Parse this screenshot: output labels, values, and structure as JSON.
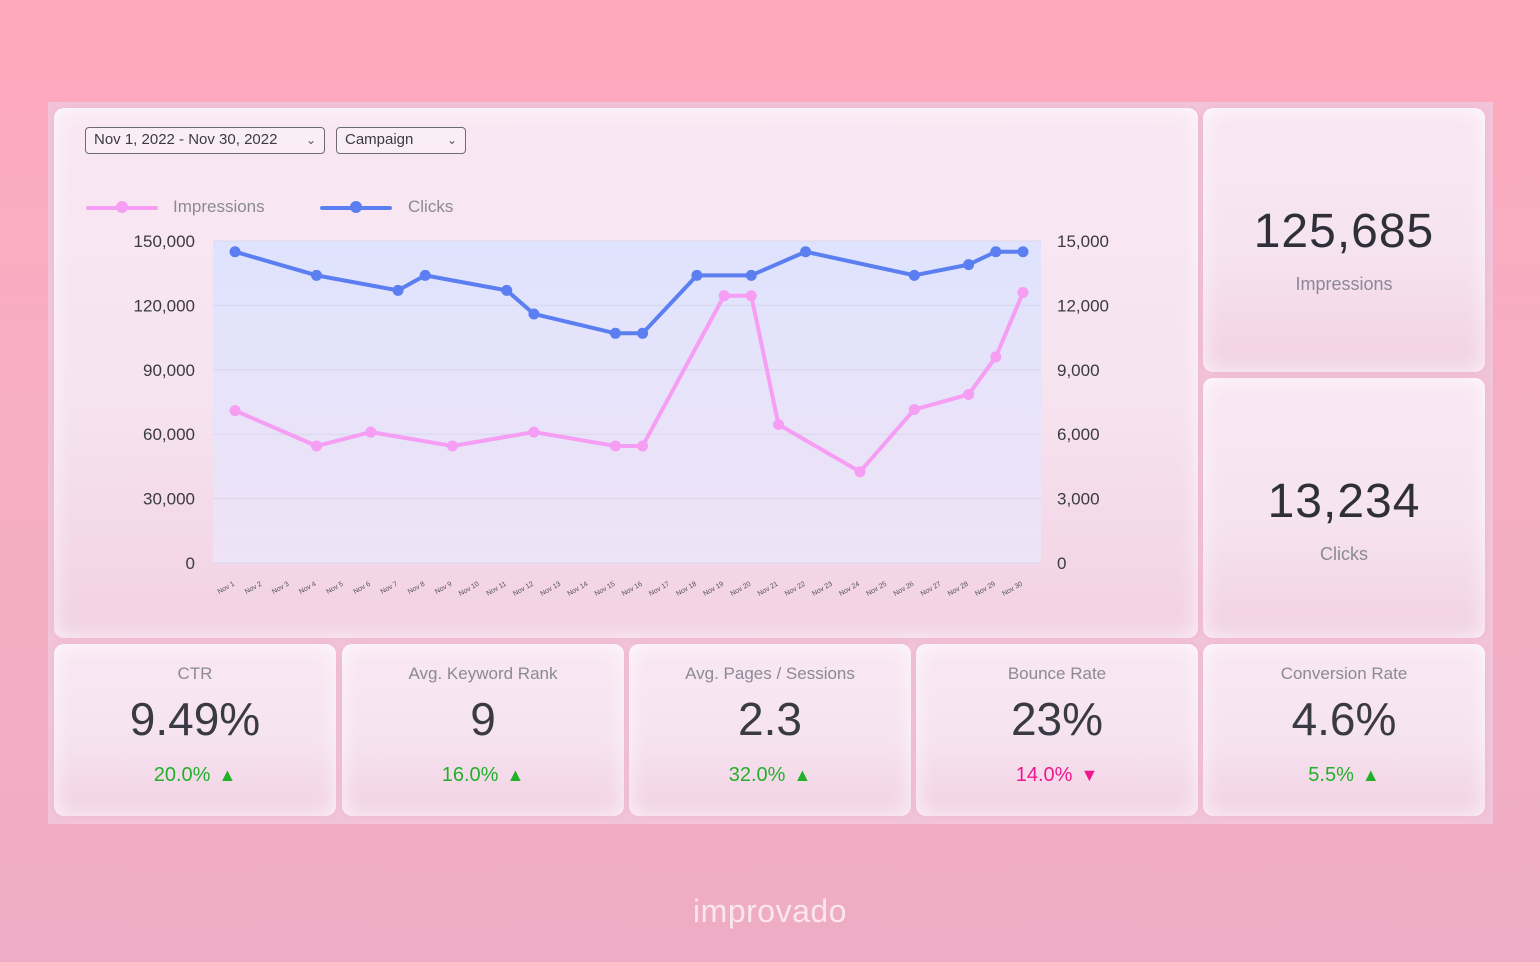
{
  "filters": {
    "date_range": "Nov 1, 2022 - Nov 30, 2022",
    "campaign": "Campaign"
  },
  "icons": {
    "dropdown": "chevron-down-icon",
    "up": "triangle-up-icon",
    "down": "triangle-down-icon"
  },
  "colors": {
    "impressions": "#f59ef3",
    "clicks": "#5b7ff0",
    "positive": "#22b02a",
    "negative": "#f0168f"
  },
  "chart_data": {
    "type": "line",
    "legend": [
      "Impressions",
      "Clicks"
    ],
    "categories": [
      "Nov 1",
      "Nov 2",
      "Nov 3",
      "Nov 4",
      "Nov 5",
      "Nov 6",
      "Nov 7",
      "Nov 8",
      "Nov 9",
      "Nov 10",
      "Nov 11",
      "Nov 12",
      "Nov 13",
      "Nov 14",
      "Nov 15",
      "Nov 16",
      "Nov 17",
      "Nov 18",
      "Nov 19",
      "Nov 20",
      "Nov 21",
      "Nov 22",
      "Nov 23",
      "Nov 24",
      "Nov 25",
      "Nov 26",
      "Nov 27",
      "Nov 28",
      "Nov 29",
      "Nov 30"
    ],
    "series": [
      {
        "name": "Impressions",
        "axis": "left",
        "x": [
          1,
          4,
          6,
          9,
          12,
          15,
          16,
          19,
          20,
          21,
          24,
          26,
          28,
          29,
          30
        ],
        "values": [
          71000,
          54500,
          61000,
          54500,
          61000,
          54500,
          54500,
          124500,
          124500,
          64500,
          42500,
          71500,
          78500,
          96000,
          126000
        ]
      },
      {
        "name": "Clicks",
        "axis": "right",
        "x": [
          1,
          4,
          7,
          8,
          11,
          12,
          15,
          16,
          18,
          20,
          22,
          26,
          28,
          29,
          30
        ],
        "values": [
          14500,
          13400,
          12700,
          13400,
          12700,
          11600,
          10700,
          10700,
          13400,
          13400,
          14500,
          13400,
          13900,
          14500,
          14500
        ]
      }
    ],
    "y_left": {
      "ylim": [
        0,
        150000
      ],
      "ticks": [
        "0",
        "30,000",
        "60,000",
        "90,000",
        "120,000",
        "150,000"
      ]
    },
    "y_right": {
      "ylim": [
        0,
        15000
      ],
      "ticks": [
        "0",
        "3,000",
        "6,000",
        "9,000",
        "12,000",
        "15,000"
      ]
    },
    "grid": true,
    "legend_position": "top-left"
  },
  "kpis": {
    "impressions": {
      "value": "125,685",
      "label": "Impressions"
    },
    "clicks": {
      "value": "13,234",
      "label": "Clicks"
    },
    "ctr": {
      "label": "CTR",
      "value": "9.49%",
      "change": "20.0%",
      "direction": "up"
    },
    "keyword_rank": {
      "label": "Avg. Keyword Rank",
      "value": "9",
      "change": "16.0%",
      "direction": "up"
    },
    "pages_sessions": {
      "label": "Avg. Pages / Sessions",
      "value": "2.3",
      "change": "32.0%",
      "direction": "up"
    },
    "bounce_rate": {
      "label": "Bounce Rate",
      "value": "23%",
      "change": "14.0%",
      "direction": "down"
    },
    "conversion_rate": {
      "label": "Conversion Rate",
      "value": "4.6%",
      "change": "5.5%",
      "direction": "up"
    }
  },
  "brand": "improvado"
}
